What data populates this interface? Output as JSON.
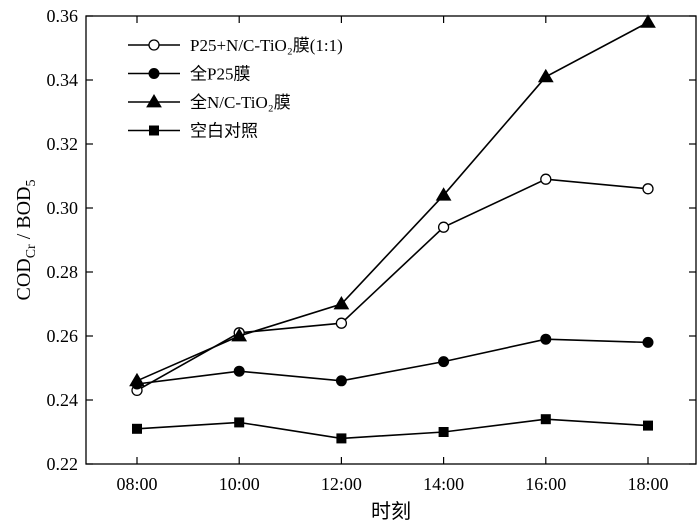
{
  "chart_data": {
    "type": "line",
    "categories": [
      "08:00",
      "10:00",
      "12:00",
      "14:00",
      "16:00",
      "18:00"
    ],
    "xlabel": "时刻",
    "ylabel": "COD",
    "ylabel_sub1": "Cr",
    "ylabel_mid": " / BOD",
    "ylabel_sub2": "5",
    "ylim": [
      0.22,
      0.36
    ],
    "yticks": [
      "0.22",
      "0.24",
      "0.26",
      "0.28",
      "0.30",
      "0.32",
      "0.34",
      "0.36"
    ],
    "grid": false,
    "legend_position": "top-left",
    "series": [
      {
        "name": "P25+N/C-TiO₂膜(1:1)",
        "marker": "circle-open",
        "values": [
          0.243,
          0.261,
          0.264,
          0.294,
          0.309,
          0.306
        ]
      },
      {
        "name": "全P25膜",
        "marker": "circle-filled",
        "values": [
          0.245,
          0.249,
          0.246,
          0.252,
          0.259,
          0.258
        ]
      },
      {
        "name": "全N/C-TiO₂膜",
        "marker": "triangle-filled",
        "values": [
          0.246,
          0.26,
          0.27,
          0.304,
          0.341,
          0.358
        ]
      },
      {
        "name": "空白对照",
        "marker": "square-filled",
        "values": [
          0.231,
          0.233,
          0.228,
          0.23,
          0.234,
          0.232
        ]
      }
    ]
  }
}
